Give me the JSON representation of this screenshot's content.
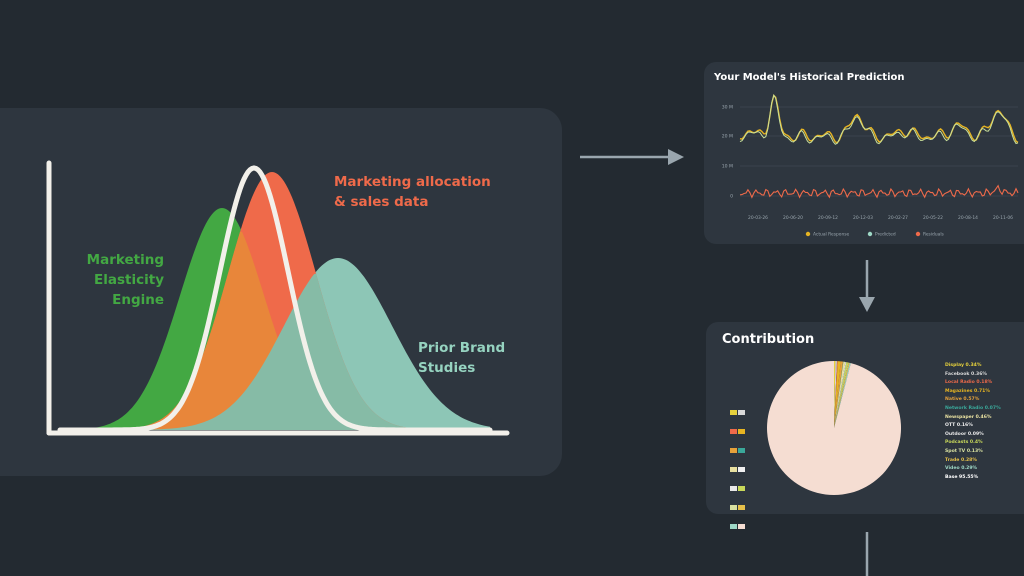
{
  "diagram": {
    "labels": {
      "elasticity": [
        "Marketing",
        "Elasticity",
        "Engine"
      ],
      "allocation": [
        "Marketing allocation",
        "& sales data"
      ],
      "prior": [
        "Prior Brand",
        "Studies"
      ]
    },
    "colors": {
      "elasticity": "#43a843",
      "allocation": "#ef6a4a",
      "prior": "#96d3c0",
      "background": "#232a31",
      "panel": "#2e363f",
      "arrow": "#9aa6ae"
    }
  },
  "historical_panel": {
    "title": "Your Model's Historical Prediction",
    "chart_data": {
      "type": "line",
      "title": "Your Model's Historical Prediction",
      "y_ticks": [
        "30 M",
        "20 M",
        "10 M",
        "0"
      ],
      "x_ticks": [
        "20-03-26",
        "20-06-20",
        "20-09-12",
        "20-12-03",
        "20-02-27",
        "20-05-22",
        "20-08-14",
        "20-11-06"
      ],
      "legend": [
        "Actual Response",
        "Predicted",
        "Residuals"
      ],
      "legend_placement": "bottom",
      "colors": [
        "#e6b422",
        "#9ed8c6",
        "#ef6a4a"
      ],
      "grid": true
    }
  },
  "contribution_panel": {
    "title": "Contribution",
    "chart_data": {
      "type": "pie",
      "title": "Contribution",
      "legend_placement": "right",
      "slices": [
        {
          "name": "Display",
          "value": 0.34,
          "label": "Display 0.34%",
          "color": "#e6d13c"
        },
        {
          "name": "Facebook",
          "value": 0.36,
          "label": "Facebook 0.36%",
          "color": "#d9d9d9"
        },
        {
          "name": "Local Radio",
          "value": 0.18,
          "label": "Local Radio 0.18%",
          "color": "#ef6a4a"
        },
        {
          "name": "Magazines",
          "value": 0.71,
          "label": "Magazines 0.71%",
          "color": "#e6b422"
        },
        {
          "name": "Native",
          "value": 0.57,
          "label": "Native 0.57%",
          "color": "#e6a13a"
        },
        {
          "name": "Network Radio",
          "value": 0.07,
          "label": "Network Radio 0.07%",
          "color": "#3aa89a"
        },
        {
          "name": "Newspaper",
          "value": 0.46,
          "label": "Newspaper 0.46%",
          "color": "#e8e0a0"
        },
        {
          "name": "OTT",
          "value": 0.16,
          "label": "OTT 0.16%",
          "color": "#f0f0f0"
        },
        {
          "name": "Outdoor",
          "value": 0.09,
          "label": "Outdoor 0.09%",
          "color": "#e8e8e8"
        },
        {
          "name": "Podcasts",
          "value": 0.4,
          "label": "Podcasts 0.4%",
          "color": "#c8d85a"
        },
        {
          "name": "Spot TV",
          "value": 0.13,
          "label": "Spot TV 0.13%",
          "color": "#d8e0a0"
        },
        {
          "name": "Trade",
          "value": 0.28,
          "label": "Trade 0.28%",
          "color": "#e6c04a"
        },
        {
          "name": "Video",
          "value": 0.29,
          "label": "Video 0.29%",
          "color": "#9ed8c6"
        },
        {
          "name": "Base",
          "value": 95.55,
          "label": "Base 95.55%",
          "color": "#f5ddd2"
        }
      ]
    }
  }
}
